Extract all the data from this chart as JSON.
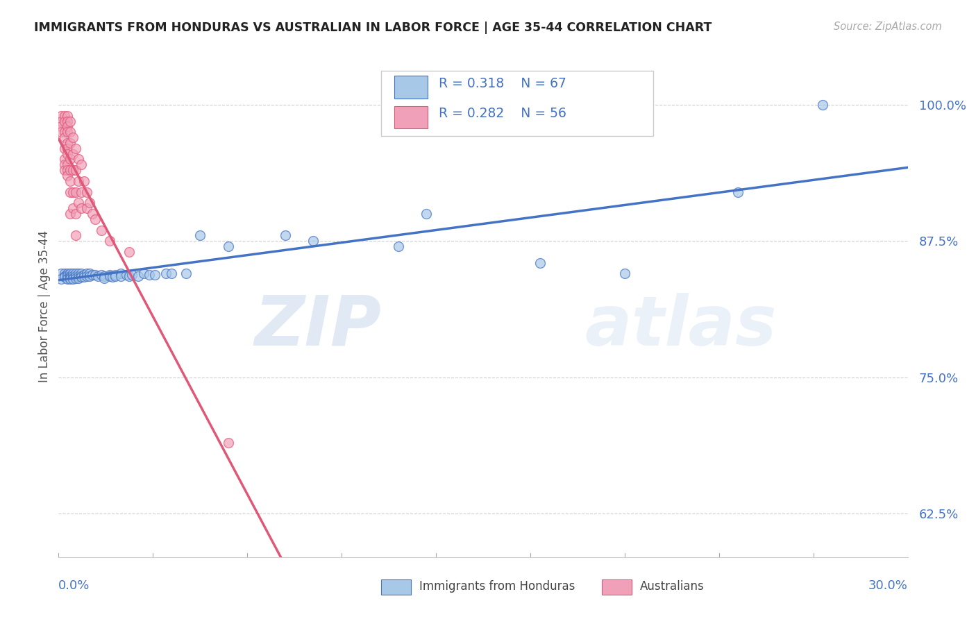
{
  "title": "IMMIGRANTS FROM HONDURAS VS AUSTRALIAN IN LABOR FORCE | AGE 35-44 CORRELATION CHART",
  "source": "Source: ZipAtlas.com",
  "ylabel": "In Labor Force | Age 35-44",
  "ylabel_ticks": [
    "62.5%",
    "75.0%",
    "87.5%",
    "100.0%"
  ],
  "ylabel_tick_vals": [
    0.625,
    0.75,
    0.875,
    1.0
  ],
  "xlim": [
    0.0,
    0.3
  ],
  "ylim": [
    0.585,
    1.045
  ],
  "blue_color": "#a8c8e8",
  "pink_color": "#f0a0b8",
  "blue_line_color": "#4472c4",
  "pink_line_color": "#e05878",
  "axis_label_color": "#4472c4",
  "watermark_zip": "ZIP",
  "watermark_atlas": "atlas",
  "blue_scatter": [
    [
      0.001,
      0.845
    ],
    [
      0.001,
      0.84
    ],
    [
      0.002,
      0.845
    ],
    [
      0.002,
      0.843
    ],
    [
      0.002,
      0.842
    ],
    [
      0.003,
      0.845
    ],
    [
      0.003,
      0.844
    ],
    [
      0.003,
      0.843
    ],
    [
      0.003,
      0.841
    ],
    [
      0.003,
      0.84
    ],
    [
      0.004,
      0.845
    ],
    [
      0.004,
      0.843
    ],
    [
      0.004,
      0.842
    ],
    [
      0.004,
      0.841
    ],
    [
      0.004,
      0.84
    ],
    [
      0.005,
      0.845
    ],
    [
      0.005,
      0.843
    ],
    [
      0.005,
      0.841
    ],
    [
      0.005,
      0.84
    ],
    [
      0.006,
      0.845
    ],
    [
      0.006,
      0.843
    ],
    [
      0.006,
      0.841
    ],
    [
      0.007,
      0.845
    ],
    [
      0.007,
      0.843
    ],
    [
      0.007,
      0.841
    ],
    [
      0.008,
      0.845
    ],
    [
      0.008,
      0.843
    ],
    [
      0.008,
      0.842
    ],
    [
      0.009,
      0.844
    ],
    [
      0.009,
      0.842
    ],
    [
      0.01,
      0.845
    ],
    [
      0.01,
      0.843
    ],
    [
      0.011,
      0.845
    ],
    [
      0.011,
      0.843
    ],
    [
      0.012,
      0.844
    ],
    [
      0.013,
      0.844
    ],
    [
      0.014,
      0.843
    ],
    [
      0.015,
      0.844
    ],
    [
      0.016,
      0.843
    ],
    [
      0.016,
      0.841
    ],
    [
      0.018,
      0.844
    ],
    [
      0.018,
      0.843
    ],
    [
      0.019,
      0.842
    ],
    [
      0.02,
      0.844
    ],
    [
      0.02,
      0.843
    ],
    [
      0.022,
      0.845
    ],
    [
      0.022,
      0.843
    ],
    [
      0.024,
      0.844
    ],
    [
      0.025,
      0.843
    ],
    [
      0.026,
      0.844
    ],
    [
      0.028,
      0.843
    ],
    [
      0.03,
      0.845
    ],
    [
      0.032,
      0.844
    ],
    [
      0.034,
      0.844
    ],
    [
      0.038,
      0.845
    ],
    [
      0.04,
      0.845
    ],
    [
      0.045,
      0.845
    ],
    [
      0.05,
      0.88
    ],
    [
      0.06,
      0.87
    ],
    [
      0.08,
      0.88
    ],
    [
      0.09,
      0.875
    ],
    [
      0.12,
      0.87
    ],
    [
      0.13,
      0.9
    ],
    [
      0.17,
      0.855
    ],
    [
      0.2,
      0.845
    ],
    [
      0.24,
      0.92
    ],
    [
      0.27,
      1.0
    ]
  ],
  "pink_scatter": [
    [
      0.001,
      0.99
    ],
    [
      0.001,
      0.985
    ],
    [
      0.001,
      0.98
    ],
    [
      0.001,
      0.975
    ],
    [
      0.002,
      0.99
    ],
    [
      0.002,
      0.985
    ],
    [
      0.002,
      0.975
    ],
    [
      0.002,
      0.97
    ],
    [
      0.002,
      0.96
    ],
    [
      0.002,
      0.95
    ],
    [
      0.002,
      0.945
    ],
    [
      0.002,
      0.94
    ],
    [
      0.003,
      0.99
    ],
    [
      0.003,
      0.985
    ],
    [
      0.003,
      0.98
    ],
    [
      0.003,
      0.975
    ],
    [
      0.003,
      0.965
    ],
    [
      0.003,
      0.96
    ],
    [
      0.003,
      0.955
    ],
    [
      0.003,
      0.945
    ],
    [
      0.003,
      0.94
    ],
    [
      0.003,
      0.935
    ],
    [
      0.004,
      0.985
    ],
    [
      0.004,
      0.975
    ],
    [
      0.004,
      0.965
    ],
    [
      0.004,
      0.95
    ],
    [
      0.004,
      0.94
    ],
    [
      0.004,
      0.93
    ],
    [
      0.004,
      0.92
    ],
    [
      0.004,
      0.9
    ],
    [
      0.005,
      0.97
    ],
    [
      0.005,
      0.955
    ],
    [
      0.005,
      0.94
    ],
    [
      0.005,
      0.92
    ],
    [
      0.005,
      0.905
    ],
    [
      0.006,
      0.96
    ],
    [
      0.006,
      0.94
    ],
    [
      0.006,
      0.92
    ],
    [
      0.006,
      0.9
    ],
    [
      0.006,
      0.88
    ],
    [
      0.007,
      0.95
    ],
    [
      0.007,
      0.93
    ],
    [
      0.007,
      0.91
    ],
    [
      0.008,
      0.945
    ],
    [
      0.008,
      0.92
    ],
    [
      0.008,
      0.905
    ],
    [
      0.009,
      0.93
    ],
    [
      0.01,
      0.92
    ],
    [
      0.01,
      0.905
    ],
    [
      0.011,
      0.91
    ],
    [
      0.012,
      0.9
    ],
    [
      0.013,
      0.895
    ],
    [
      0.015,
      0.885
    ],
    [
      0.018,
      0.875
    ],
    [
      0.025,
      0.865
    ],
    [
      0.06,
      0.69
    ]
  ]
}
